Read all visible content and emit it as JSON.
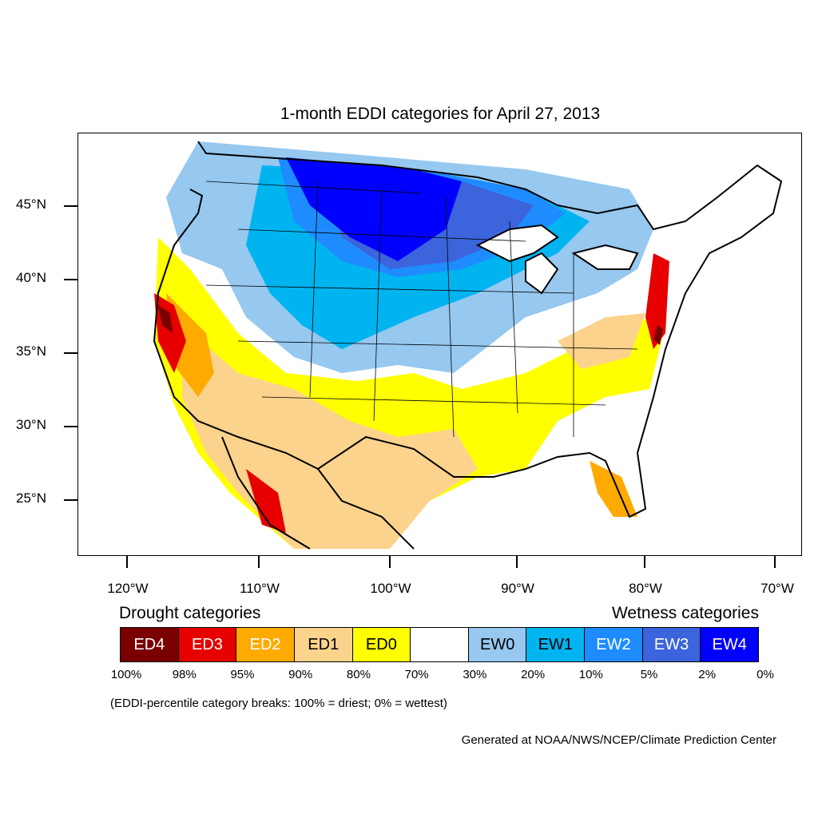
{
  "title": "1-month EDDI categories for April 27, 2013",
  "map": {
    "lat_labels": [
      "45°N",
      "40°N",
      "35°N",
      "30°N",
      "25°N"
    ],
    "lon_labels": [
      "120°W",
      "110°W",
      "100°W",
      "90°W",
      "80°W",
      "70°W"
    ],
    "colors": {
      "ED4": "#7a0000",
      "ED3": "#e60000",
      "ED2": "#ffaa00",
      "ED1": "#fcd38c",
      "ED0": "#ffff00",
      "neutral": "#ffffff",
      "EW0": "#96c8f0",
      "EW1": "#00b4f0",
      "EW2": "#1e8cff",
      "EW3": "#3c64dc",
      "EW4": "#0000ff"
    }
  },
  "legend": {
    "drought_heading": "Drought categories",
    "wetness_heading": "Wetness categories",
    "categories": [
      {
        "label": "ED4",
        "color": "#7a0000",
        "text_color": "#ffffff"
      },
      {
        "label": "ED3",
        "color": "#e60000",
        "text_color": "#ffffff"
      },
      {
        "label": "ED2",
        "color": "#ffaa00",
        "text_color": "#ffffff"
      },
      {
        "label": "ED1",
        "color": "#fcd38c",
        "text_color": "#000000"
      },
      {
        "label": "ED0",
        "color": "#ffff00",
        "text_color": "#000000"
      },
      {
        "label": "",
        "color": "#ffffff",
        "text_color": "#000000"
      },
      {
        "label": "EW0",
        "color": "#96c8f0",
        "text_color": "#000000"
      },
      {
        "label": "EW1",
        "color": "#00b4f0",
        "text_color": "#000000"
      },
      {
        "label": "EW2",
        "color": "#1e8cff",
        "text_color": "#ffffff"
      },
      {
        "label": "EW3",
        "color": "#3c64dc",
        "text_color": "#ffffff"
      },
      {
        "label": "EW4",
        "color": "#0000ff",
        "text_color": "#ffffff"
      }
    ],
    "breaks": [
      "100%",
      "98%",
      "95%",
      "90%",
      "80%",
      "70%",
      "30%",
      "20%",
      "10%",
      "5%",
      "2%",
      "0%"
    ]
  },
  "note": "(EDDI-percentile category breaks: 100% = driest; 0% = wettest)",
  "credit": "Generated at NOAA/NWS/NCEP/Climate Prediction Center"
}
